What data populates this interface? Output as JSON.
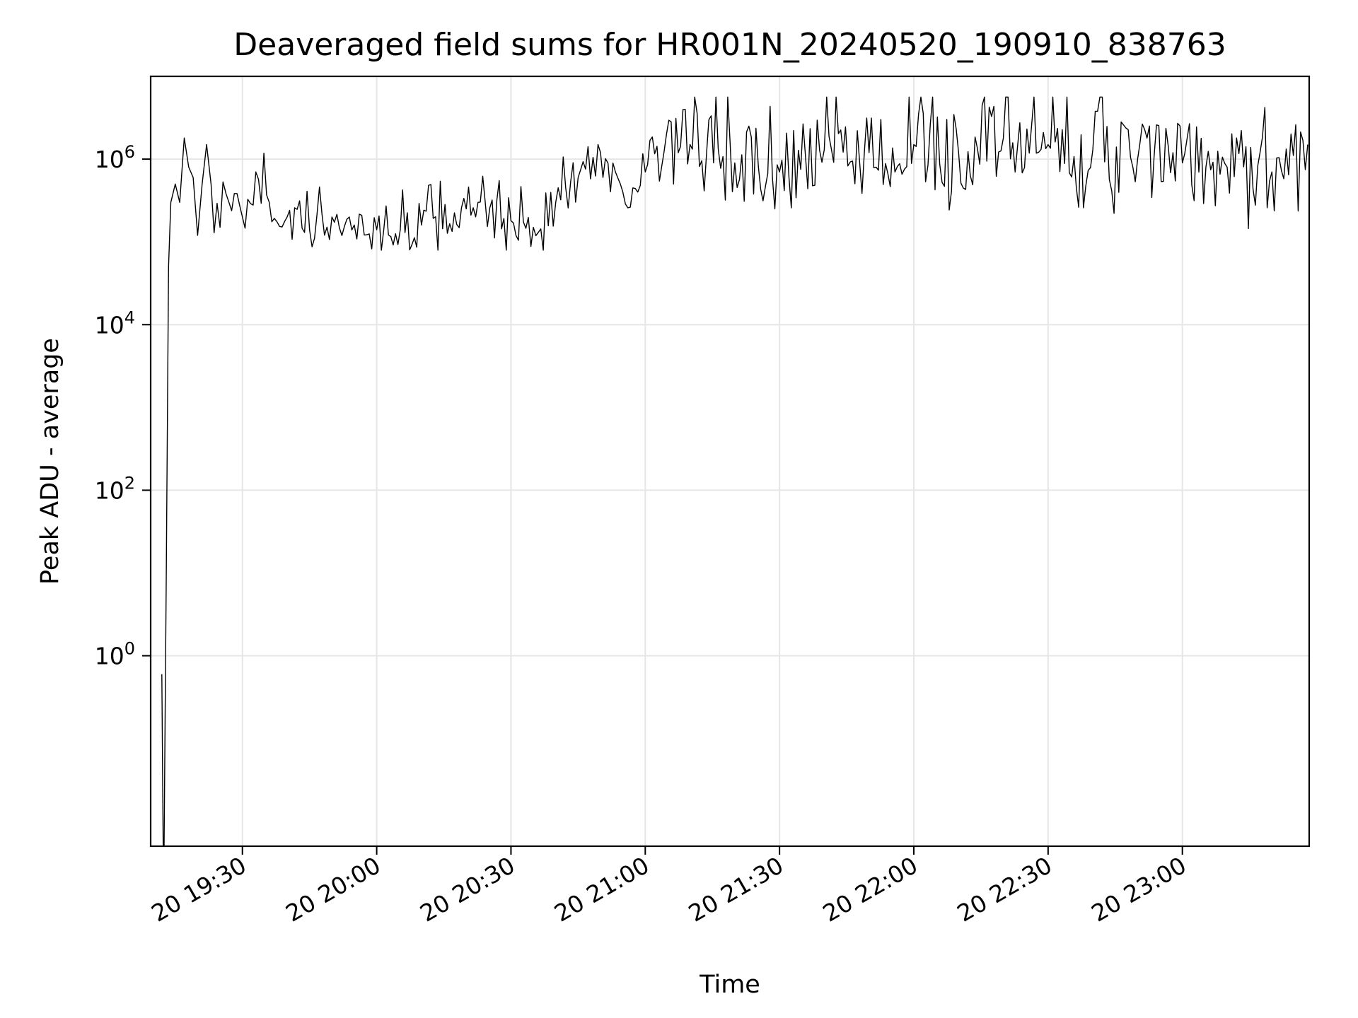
{
  "chart_data": {
    "type": "line",
    "title": "Deaveraged field sums for HR001N_20240520_190910_838763",
    "xlabel": "Time",
    "ylabel": "Peak ADU - average",
    "y_scale": "log",
    "ylim": [
      0.005,
      10000000
    ],
    "xlim": [
      "2024-05-20 19:09:30",
      "2024-05-20 23:28:20"
    ],
    "x_ticks": [
      {
        "time": "2024-05-20 19:30:00",
        "label": "20 19:30"
      },
      {
        "time": "2024-05-20 20:00:00",
        "label": "20 20:00"
      },
      {
        "time": "2024-05-20 20:30:00",
        "label": "20 20:30"
      },
      {
        "time": "2024-05-20 21:00:00",
        "label": "20 21:00"
      },
      {
        "time": "2024-05-20 21:30:00",
        "label": "20 21:30"
      },
      {
        "time": "2024-05-20 22:00:00",
        "label": "20 22:00"
      },
      {
        "time": "2024-05-20 22:30:00",
        "label": "20 22:30"
      },
      {
        "time": "2024-05-20 23:00:00",
        "label": "20 23:00"
      }
    ],
    "y_ticks": [
      {
        "value": 1,
        "base": "10",
        "exp": "0"
      },
      {
        "value": 100,
        "base": "10",
        "exp": "2"
      },
      {
        "value": 10000,
        "base": "10",
        "exp": "4"
      },
      {
        "value": 1000000,
        "base": "10",
        "exp": "6"
      }
    ],
    "grid": true,
    "line_color": "#000000",
    "series": [
      {
        "x": [
          "2024-05-20 19:12:00",
          "2024-05-20 19:12:18",
          "2024-05-20 19:12:30",
          "2024-05-20 19:13:00",
          "2024-05-20 19:13:30",
          "2024-05-20 19:14:00",
          "2024-05-20 19:15:00",
          "2024-05-20 19:16:00",
          "2024-05-20 19:17:00",
          "2024-05-20 19:18:00",
          "2024-05-20 19:19:00",
          "2024-05-20 19:20:00",
          "2024-05-20 19:21:00",
          "2024-05-20 19:22:00",
          "2024-05-20 19:23:00",
          "2024-05-20 19:25:00",
          "2024-05-20 19:27:00",
          "2024-05-20 19:30:00",
          "2024-05-20 19:33:00",
          "2024-05-20 19:36:00",
          "2024-05-20 19:40:00",
          "2024-05-20 19:45:00",
          "2024-05-20 19:50:00",
          "2024-05-20 19:55:00",
          "2024-05-20 20:00:00",
          "2024-05-20 20:10:00",
          "2024-05-20 20:20:00",
          "2024-05-20 20:30:00",
          "2024-05-20 20:35:00",
          "2024-05-20 20:40:00",
          "2024-05-20 20:45:00",
          "2024-05-20 20:50:00",
          "2024-05-20 20:55:00",
          "2024-05-20 21:00:00",
          "2024-05-20 21:10:00",
          "2024-05-20 21:20:00",
          "2024-05-20 21:30:00",
          "2024-05-20 21:40:00",
          "2024-05-20 21:50:00",
          "2024-05-20 22:00:00",
          "2024-05-20 22:10:00",
          "2024-05-20 22:20:00",
          "2024-05-20 22:30:00",
          "2024-05-20 22:40:00",
          "2024-05-20 22:50:00",
          "2024-05-20 23:00:00",
          "2024-05-20 23:10:00",
          "2024-05-20 23:20:00",
          "2024-05-20 23:28:00"
        ],
        "y": [
          0.6,
          0.005,
          0.005,
          10,
          50000,
          300000,
          500000,
          300000,
          1800000,
          800000,
          600000,
          120000,
          500000,
          1500000,
          500000,
          150000,
          300000,
          200000,
          700000,
          300000,
          200000,
          140000,
          200000,
          160000,
          140000,
          160000,
          250000,
          180000,
          150000,
          300000,
          600000,
          1200000,
          400000,
          700000,
          1500000,
          900000,
          700000,
          1300000,
          1200000,
          1500000,
          1200000,
          1800000,
          1500000,
          1300000,
          1000000,
          900000,
          800000,
          700000,
          1500000
        ]
      }
    ]
  }
}
